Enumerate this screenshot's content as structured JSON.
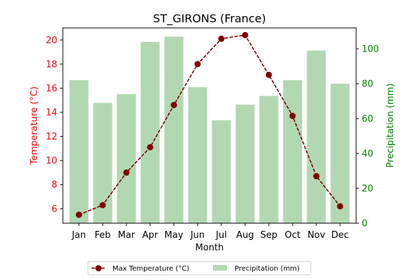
{
  "chart_data": {
    "type": "bar+line",
    "title": "ST_GIRONS (France)",
    "xlabel": "Month",
    "categories": [
      "Jan",
      "Feb",
      "Mar",
      "Apr",
      "May",
      "Jun",
      "Jul",
      "Aug",
      "Sep",
      "Oct",
      "Nov",
      "Dec"
    ],
    "left_axis": {
      "label": "Temperature (°C)",
      "ylim": [
        4.8,
        21.0
      ],
      "ticks": [
        6,
        8,
        10,
        12,
        14,
        16,
        18,
        20
      ],
      "color": "#ff0000"
    },
    "right_axis": {
      "label": "Precipitation (mm)",
      "ylim": [
        0,
        112
      ],
      "ticks": [
        0,
        20,
        40,
        60,
        80,
        100
      ],
      "color": "#008000"
    },
    "series": [
      {
        "name": "Max Temperature (°C)",
        "type": "line",
        "axis": "left",
        "color": "#800000",
        "line_style": "dashed",
        "marker": "circle",
        "values": [
          5.5,
          6.3,
          9.0,
          11.1,
          14.6,
          18.0,
          20.1,
          20.4,
          17.1,
          13.7,
          8.7,
          6.2
        ]
      },
      {
        "name": "Precipitation (mm)",
        "type": "bar",
        "axis": "right",
        "color": "#b2d8b2",
        "values": [
          82,
          69,
          74,
          104,
          107,
          78,
          59,
          68,
          73,
          82,
          99,
          80
        ]
      }
    ],
    "legend": {
      "placement": "bottom-center",
      "entries": [
        "Max Temperature (°C)",
        "Precipitation (mm)"
      ]
    },
    "grid": false
  }
}
